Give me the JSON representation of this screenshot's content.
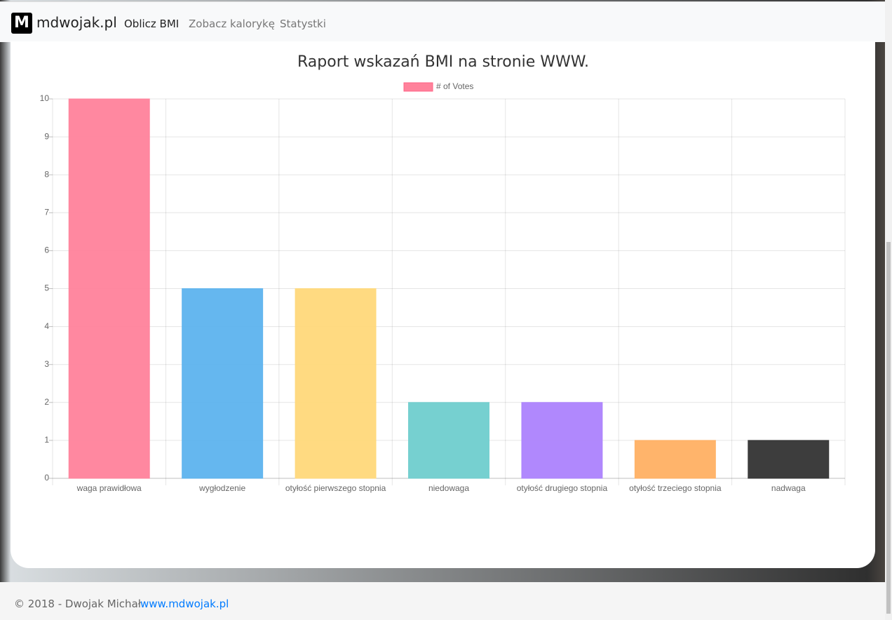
{
  "nav": {
    "brand": "mdwojak.pl",
    "links": [
      "Oblicz BMI",
      "Zobacz kalorykę",
      "Statystki"
    ]
  },
  "chart_data": {
    "type": "bar",
    "title": "Raport wskazań BMI na stronie WWW.",
    "categories": [
      "waga prawidłowa",
      "wygłodzenie",
      "otyłość pierwszego stopnia",
      "niedowaga",
      "otyłość drugiego stopnia",
      "otyłość trzeciego stopnia",
      "nadwaga"
    ],
    "series": [
      {
        "name": "# of Votes",
        "colors": [
          "#ff829b",
          "#5db3ee",
          "#ffd87a",
          "#6fcdcd",
          "#ac82fd",
          "#ffb063",
          "#333333"
        ],
        "values": [
          10,
          5,
          5,
          2,
          2,
          1,
          1
        ]
      }
    ],
    "ylim": [
      0,
      10
    ],
    "yticks": [
      0,
      1,
      2,
      3,
      4,
      5,
      6,
      7,
      8,
      9,
      10
    ],
    "grid": true,
    "legend": "top"
  },
  "footer": {
    "text": "© 2018 - Dwojak Michał.",
    "link": "www.mdwojak.pl"
  }
}
